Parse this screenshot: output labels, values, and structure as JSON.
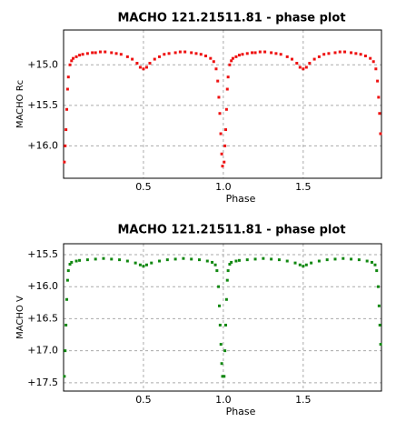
{
  "chart_data": [
    {
      "type": "scatter",
      "title": "MACHO 121.21511.81 - phase plot",
      "xlabel": "Phase",
      "ylabel": "MACHO Rc",
      "color": "#ee1111",
      "xlim": [
        0,
        1.99
      ],
      "xticks": [
        0.5,
        {
          "value": 1,
          "label": "1.0"
        },
        1.5
      ],
      "ylim": [
        16.4,
        14.57
      ],
      "yticks": [
        {
          "value": 15,
          "label": "+15.0"
        },
        {
          "value": 15.5,
          "label": "+15.5"
        },
        {
          "value": 16,
          "label": "+16.0"
        }
      ],
      "grid": true,
      "x": [
        0.005,
        0.01,
        0.015,
        0.02,
        0.025,
        0.03,
        0.04,
        0.05,
        0.06,
        0.08,
        0.1,
        0.12,
        0.15,
        0.18,
        0.2,
        0.23,
        0.26,
        0.3,
        0.33,
        0.36,
        0.4,
        0.43,
        0.46,
        0.48,
        0.5,
        0.52,
        0.54,
        0.57,
        0.6,
        0.63,
        0.66,
        0.7,
        0.73,
        0.76,
        0.8,
        0.83,
        0.86,
        0.89,
        0.92,
        0.94,
        0.955,
        0.965,
        0.972,
        0.978,
        0.984,
        0.99,
        0.995,
        1.005,
        1.01,
        1.015,
        1.02,
        1.025,
        1.03,
        1.04,
        1.05,
        1.06,
        1.08,
        1.1,
        1.12,
        1.15,
        1.18,
        1.2,
        1.23,
        1.26,
        1.3,
        1.33,
        1.36,
        1.4,
        1.43,
        1.46,
        1.48,
        1.5,
        1.52,
        1.54,
        1.57,
        1.6,
        1.63,
        1.66,
        1.7,
        1.73,
        1.76,
        1.8,
        1.83,
        1.86,
        1.89,
        1.92,
        1.94,
        1.955,
        1.965,
        1.972,
        1.978,
        1.984
      ],
      "values": [
        16.2,
        16.0,
        15.8,
        15.55,
        15.3,
        15.15,
        15.0,
        14.95,
        14.92,
        14.9,
        14.88,
        14.87,
        14.86,
        14.85,
        14.85,
        14.84,
        14.84,
        14.85,
        14.86,
        14.87,
        14.9,
        14.93,
        14.98,
        15.03,
        15.05,
        15.03,
        14.98,
        14.93,
        14.9,
        14.87,
        14.86,
        14.85,
        14.84,
        14.84,
        14.85,
        14.86,
        14.87,
        14.89,
        14.92,
        14.96,
        15.05,
        15.2,
        15.4,
        15.6,
        15.85,
        16.1,
        16.25,
        16.2,
        16.0,
        15.8,
        15.55,
        15.3,
        15.15,
        15.0,
        14.95,
        14.92,
        14.9,
        14.88,
        14.87,
        14.86,
        14.85,
        14.85,
        14.84,
        14.84,
        14.85,
        14.86,
        14.87,
        14.9,
        14.93,
        14.98,
        15.03,
        15.05,
        15.03,
        14.98,
        14.93,
        14.9,
        14.87,
        14.86,
        14.85,
        14.84,
        14.84,
        14.85,
        14.86,
        14.87,
        14.89,
        14.92,
        14.96,
        15.05,
        15.2,
        15.4,
        15.6,
        15.85
      ]
    },
    {
      "type": "scatter",
      "title": "MACHO 121.21511.81 - phase plot",
      "xlabel": "Phase",
      "ylabel": "MACHO V",
      "color": "#118811",
      "xlim": [
        0,
        1.99
      ],
      "xticks": [
        0.5,
        {
          "value": 1,
          "label": "1.0"
        },
        1.5
      ],
      "ylim": [
        17.63,
        15.33
      ],
      "yticks": [
        {
          "value": 15.5,
          "label": "+15.5"
        },
        {
          "value": 16,
          "label": "+16.0"
        },
        {
          "value": 16.5,
          "label": "+16.5"
        },
        {
          "value": 17,
          "label": "+17.0"
        },
        {
          "value": 17.5,
          "label": "+17.5"
        }
      ],
      "grid": true,
      "x": [
        0.005,
        0.01,
        0.015,
        0.02,
        0.025,
        0.03,
        0.04,
        0.05,
        0.08,
        0.1,
        0.15,
        0.2,
        0.25,
        0.3,
        0.35,
        0.4,
        0.45,
        0.48,
        0.5,
        0.52,
        0.55,
        0.6,
        0.65,
        0.7,
        0.75,
        0.8,
        0.85,
        0.9,
        0.93,
        0.95,
        0.96,
        0.97,
        0.975,
        0.98,
        0.985,
        0.99,
        0.995,
        1.005,
        1.01,
        1.015,
        1.02,
        1.025,
        1.03,
        1.04,
        1.05,
        1.08,
        1.1,
        1.15,
        1.2,
        1.25,
        1.3,
        1.35,
        1.4,
        1.45,
        1.48,
        1.5,
        1.52,
        1.55,
        1.6,
        1.65,
        1.7,
        1.75,
        1.8,
        1.85,
        1.9,
        1.93,
        1.95,
        1.96,
        1.97,
        1.975,
        1.98,
        1.985
      ],
      "values": [
        17.4,
        17.0,
        16.6,
        16.2,
        15.9,
        15.75,
        15.65,
        15.62,
        15.6,
        15.59,
        15.58,
        15.57,
        15.56,
        15.57,
        15.58,
        15.6,
        15.63,
        15.66,
        15.68,
        15.66,
        15.63,
        15.6,
        15.58,
        15.57,
        15.56,
        15.57,
        15.58,
        15.6,
        15.62,
        15.66,
        15.75,
        16.0,
        16.3,
        16.6,
        16.9,
        17.2,
        17.4,
        17.4,
        17.0,
        16.6,
        16.2,
        15.9,
        15.75,
        15.65,
        15.62,
        15.6,
        15.59,
        15.58,
        15.57,
        15.56,
        15.57,
        15.58,
        15.6,
        15.63,
        15.66,
        15.68,
        15.66,
        15.63,
        15.6,
        15.58,
        15.57,
        15.56,
        15.57,
        15.58,
        15.6,
        15.62,
        15.66,
        15.75,
        16.0,
        16.3,
        16.6,
        16.9
      ]
    }
  ]
}
